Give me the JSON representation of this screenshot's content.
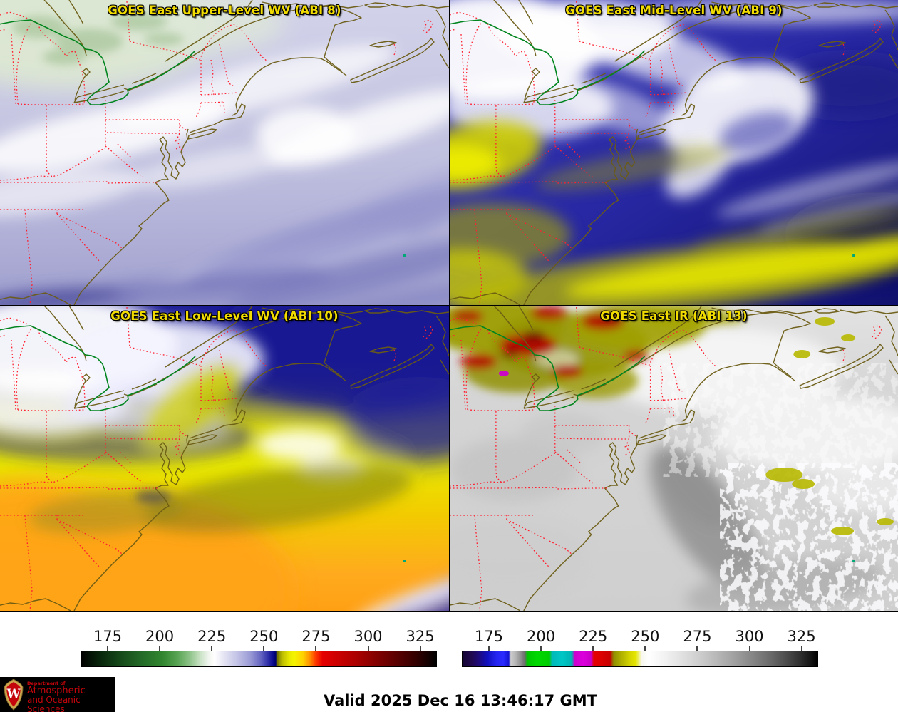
{
  "panels": [
    {
      "title": "GOES East Upper-Level WV (ABI 8)"
    },
    {
      "title": "GOES East Mid-Level WV (ABI 9)"
    },
    {
      "title": "GOES East Low-Level WV (ABI 10)"
    },
    {
      "title": "GOES East IR (ABI 13)"
    }
  ],
  "colorbars": [
    {
      "name": "wv-colorbar",
      "ticks": [
        {
          "label": "175",
          "pos": 7.6
        },
        {
          "label": "200",
          "pos": 22.22
        },
        {
          "label": "225",
          "pos": 36.84
        },
        {
          "label": "250",
          "pos": 51.46
        },
        {
          "label": "275",
          "pos": 66.08
        },
        {
          "label": "300",
          "pos": 80.7
        },
        {
          "label": "325",
          "pos": 95.32
        }
      ],
      "gradient": [
        [
          "#000000",
          0
        ],
        [
          "#07230a",
          5
        ],
        [
          "#16491a",
          11
        ],
        [
          "#26702a",
          18
        ],
        [
          "#31862f",
          23
        ],
        [
          "#57a352",
          27
        ],
        [
          "#8cc287",
          30.5
        ],
        [
          "#c9e2c4",
          33.5
        ],
        [
          "#f2f6f0",
          36
        ],
        [
          "#ffffff",
          37.5
        ],
        [
          "#e2e2f2",
          40.5
        ],
        [
          "#c2c2e6",
          44
        ],
        [
          "#9c9cd6",
          47.5
        ],
        [
          "#6666c2",
          50.5
        ],
        [
          "#3232aa",
          52.5
        ],
        [
          "#0c0c8e",
          54
        ],
        [
          "#00006e",
          54.8
        ],
        [
          "#6e6e00",
          55.2
        ],
        [
          "#b9b900",
          56.5
        ],
        [
          "#e6e600",
          58.5
        ],
        [
          "#f4f400",
          60
        ],
        [
          "#ffd200",
          62.5
        ],
        [
          "#ff8c00",
          64.5
        ],
        [
          "#ff3c00",
          66
        ],
        [
          "#e60000",
          68
        ],
        [
          "#cd0000",
          72
        ],
        [
          "#a80000",
          78
        ],
        [
          "#7d0000",
          84
        ],
        [
          "#520000",
          90
        ],
        [
          "#2e0000",
          95
        ],
        [
          "#120000",
          98
        ],
        [
          "#000000",
          100
        ]
      ]
    },
    {
      "name": "ir-colorbar",
      "ticks": [
        {
          "label": "175",
          "pos": 7.6
        },
        {
          "label": "200",
          "pos": 22.22
        },
        {
          "label": "225",
          "pos": 36.84
        },
        {
          "label": "250",
          "pos": 51.46
        },
        {
          "label": "275",
          "pos": 66.08
        },
        {
          "label": "300",
          "pos": 80.7
        },
        {
          "label": "325",
          "pos": 95.32
        }
      ],
      "gradient": [
        [
          "#140533",
          0
        ],
        [
          "#20084d",
          2.5
        ],
        [
          "#1e0a78",
          4.5
        ],
        [
          "#0f0fbe",
          7
        ],
        [
          "#2424f0",
          9.5
        ],
        [
          "#2a2aff",
          11.5
        ],
        [
          "#1414d2",
          13
        ],
        [
          "#cdcdcd",
          13.6
        ],
        [
          "#b4b4b4",
          15
        ],
        [
          "#8c8c8c",
          16.5
        ],
        [
          "#696969",
          17.6
        ],
        [
          "#00c300",
          18.2
        ],
        [
          "#00d800",
          21
        ],
        [
          "#00cc00",
          24.5
        ],
        [
          "#00b8b8",
          25.2
        ],
        [
          "#00c6c6",
          28
        ],
        [
          "#00b2b2",
          30.8
        ],
        [
          "#cc00cc",
          31.6
        ],
        [
          "#dc00dc",
          34
        ],
        [
          "#c800c8",
          36.2
        ],
        [
          "#e60000",
          37
        ],
        [
          "#dc0000",
          39
        ],
        [
          "#c80000",
          41.6
        ],
        [
          "#8f8f00",
          42.6
        ],
        [
          "#b4b400",
          45
        ],
        [
          "#d2d200",
          47
        ],
        [
          "#e6e600",
          48.8
        ],
        [
          "#f8f8f0",
          50.5
        ],
        [
          "#ffffff",
          52.5
        ],
        [
          "#f2f2f2",
          57
        ],
        [
          "#e0e0e0",
          62
        ],
        [
          "#cccccc",
          67
        ],
        [
          "#b6b6b6",
          72
        ],
        [
          "#9e9e9e",
          77
        ],
        [
          "#848484",
          82
        ],
        [
          "#686868",
          87
        ],
        [
          "#4a4a4a",
          91.5
        ],
        [
          "#2c2c2c",
          95.5
        ],
        [
          "#111111",
          98.5
        ],
        [
          "#000000",
          100
        ]
      ]
    }
  ],
  "footer": {
    "valid_label": "Valid 2025 Dec 16 13:46:17 GMT",
    "logo": {
      "dept": "Department of",
      "name_line1": "Atmospheric",
      "name_line2": "and Oceanic Sciences",
      "monogram": "W"
    }
  },
  "colors": {
    "panel_title": "#f2dc00",
    "state_border": "#ff2030",
    "coastline": "#6b5c14",
    "international_border": "#00851e",
    "bermuda_marker": "#00a878",
    "logo_text": "#c5050c",
    "logo_bg": "#000000",
    "page_bg": "#ffffff",
    "tick_text": "#111111"
  }
}
